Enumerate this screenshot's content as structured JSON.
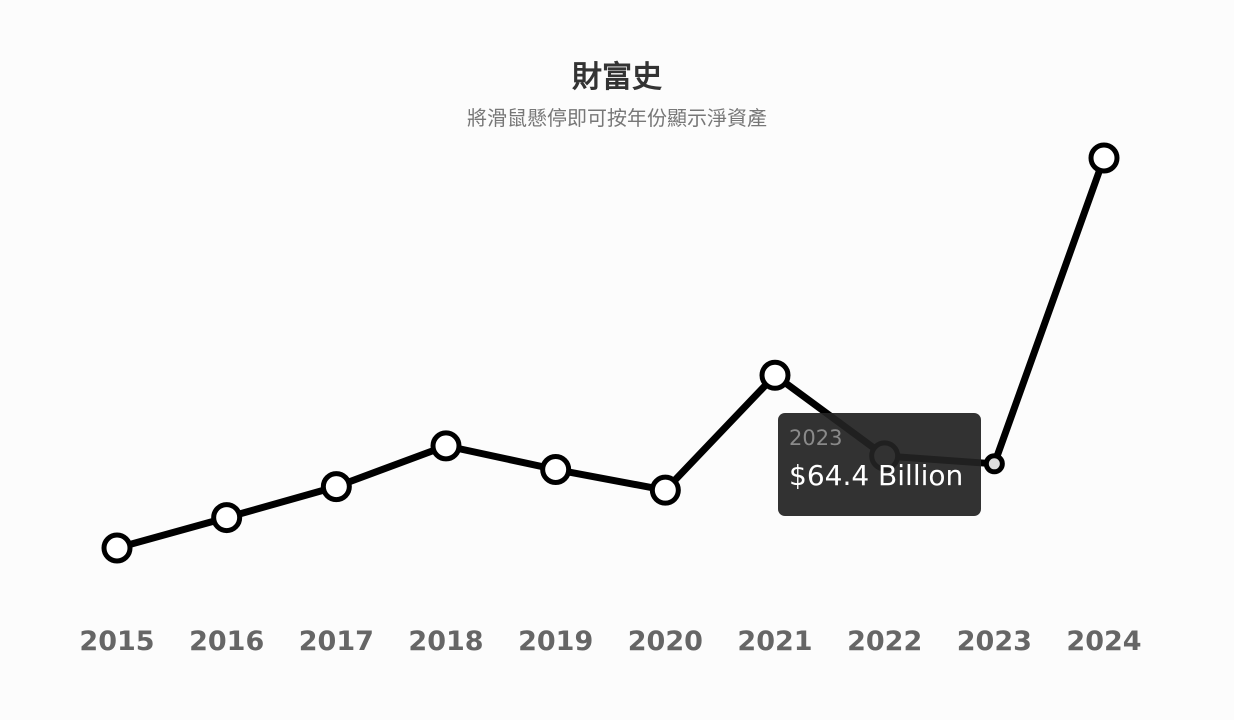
{
  "chart_data": {
    "type": "line",
    "title": "財富史",
    "subtitle": "將滑鼠懸停即可按年份顯示淨資產",
    "categories": [
      "2015",
      "2016",
      "2017",
      "2018",
      "2019",
      "2020",
      "2021",
      "2022",
      "2023",
      "2024"
    ],
    "series": [
      {
        "values": [
          33.4,
          44.6,
          56.0,
          71.0,
          62.3,
          54.7,
          97.0,
          67.3,
          64.4,
          177.0
        ]
      }
    ],
    "unit": "Billion",
    "grid": false,
    "line_color": "#000000",
    "marker_fill": "#ffffff",
    "tooltip": {
      "year": "2023",
      "value": "$64.4 Billion"
    }
  }
}
